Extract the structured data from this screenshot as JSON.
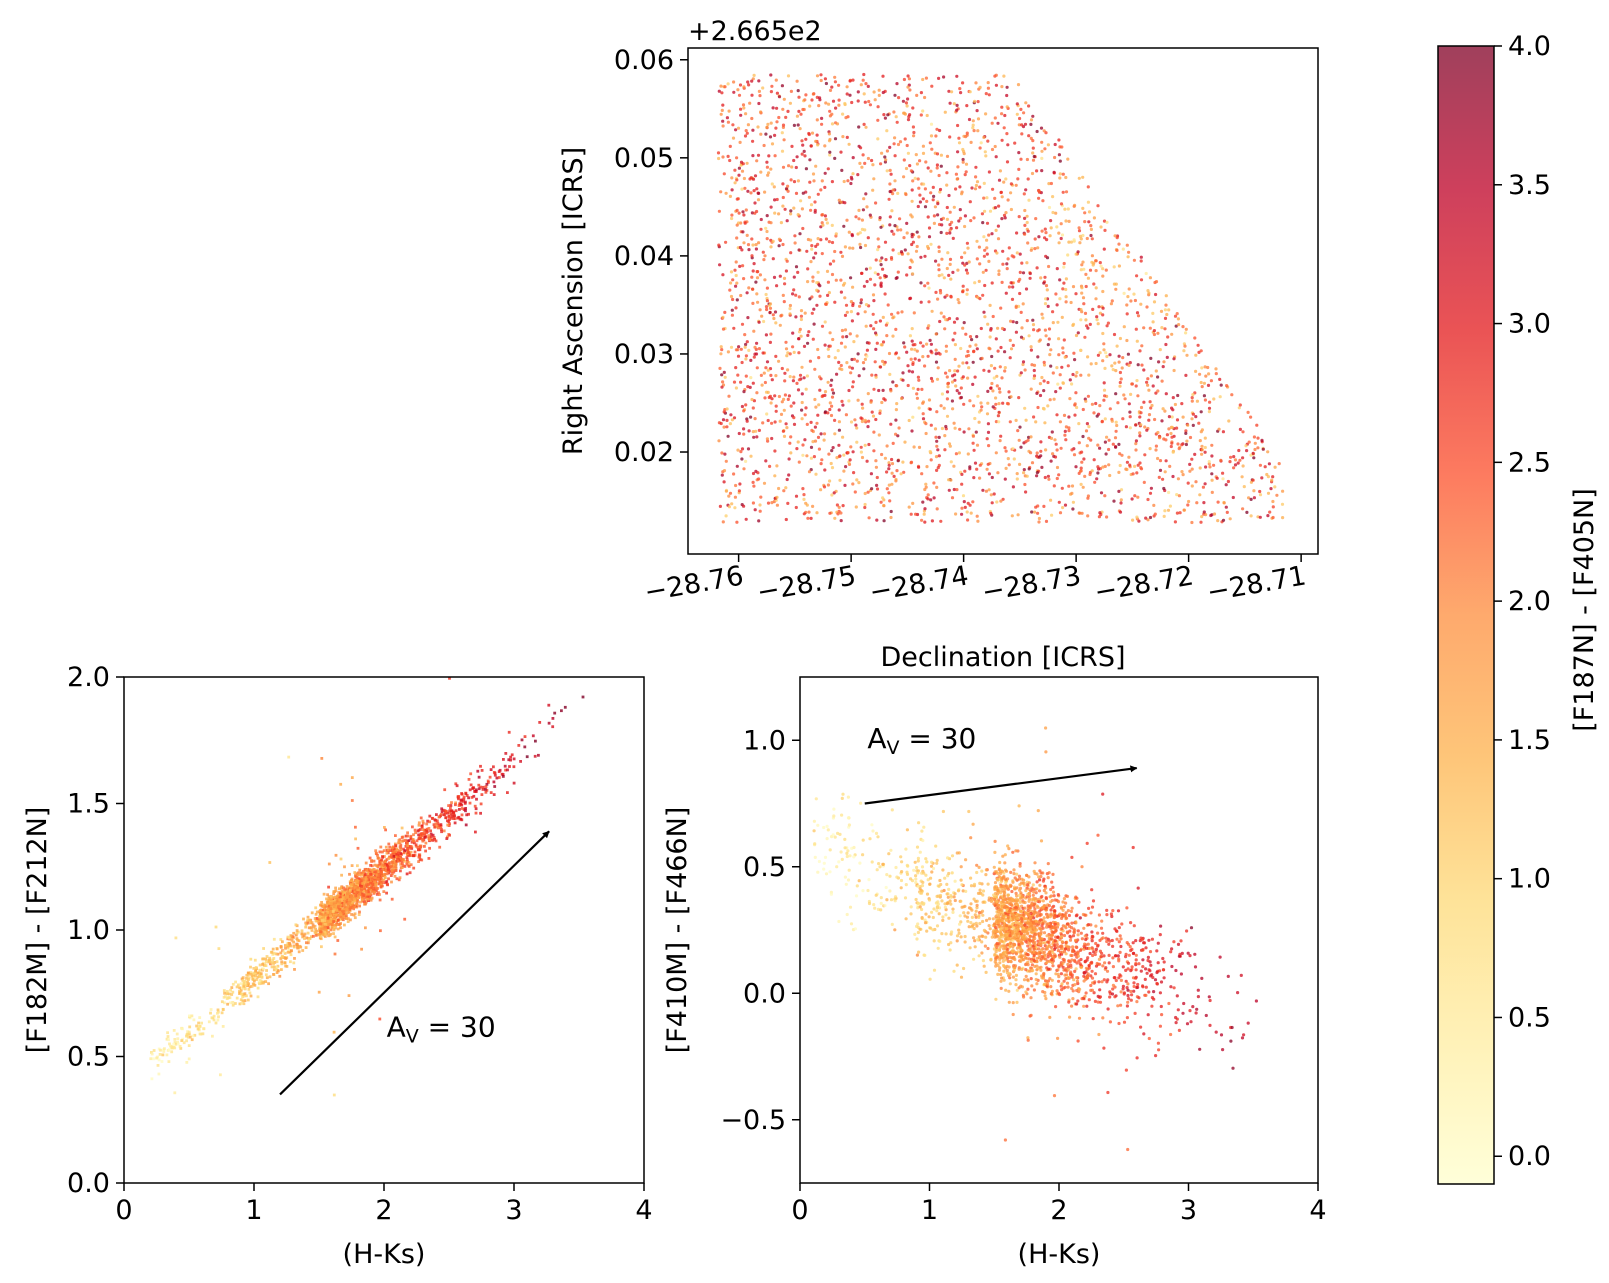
{
  "colorbar": {
    "label": "[F187N] - [F405N]",
    "vmin": -0.1,
    "vmax": 4.0,
    "ticks": [
      0.0,
      0.5,
      1.0,
      1.5,
      2.0,
      2.5,
      3.0,
      3.5,
      4.0
    ],
    "tick_labels": [
      "0.0",
      "0.5",
      "1.0",
      "1.5",
      "2.0",
      "2.5",
      "3.0",
      "3.5",
      "4.0"
    ],
    "colormap": "YlOrRd",
    "stops": [
      "#ffffcc",
      "#ffeda0",
      "#fed976",
      "#feb24c",
      "#fd8d3c",
      "#fc4e2a",
      "#e31a1c",
      "#bd0026",
      "#800026"
    ],
    "alpha": 0.75
  },
  "chart_data": [
    {
      "id": "sky",
      "type": "scatter",
      "title": "",
      "xlabel": "Declination [ICRS]",
      "ylabel": "Right Ascension [ICRS]",
      "offset_text": "+2.665e2",
      "xlim": [
        -28.7645,
        -28.7085
      ],
      "ylim": [
        0.0096,
        0.0612
      ],
      "xticks": [
        -28.76,
        -28.75,
        -28.74,
        -28.73,
        -28.72,
        -28.71
      ],
      "xtick_labels": [
        "−28.76",
        "−28.75",
        "−28.74",
        "−28.73",
        "−28.72",
        "−28.71"
      ],
      "yticks": [
        0.02,
        0.03,
        0.04,
        0.05,
        0.06
      ],
      "ytick_labels": [
        "0.02",
        "0.03",
        "0.04",
        "0.05",
        "0.06"
      ],
      "points_description": "approx. 3000 sources filling a trapezoidal field",
      "footprint": {
        "dec_min": -28.7618,
        "dec_max": -28.7115,
        "ra_min": 0.0128,
        "ra_max": 0.0585,
        "top_right_dec": -28.7355,
        "slant_end_dec": -28.7115,
        "slant_end_ra": 0.019
      },
      "color_range": [
        0.5,
        4.0
      ]
    },
    {
      "id": "cmd_left",
      "type": "scatter",
      "title": "",
      "xlabel": "(H-Ks)",
      "ylabel": "[F182M] - [F212N]",
      "xlim": [
        0,
        4
      ],
      "ylim": [
        0.0,
        2.0
      ],
      "xticks": [
        0,
        1,
        2,
        3,
        4
      ],
      "xtick_labels": [
        "0",
        "1",
        "2",
        "3",
        "4"
      ],
      "yticks": [
        0.0,
        0.5,
        1.0,
        1.5,
        2.0
      ],
      "ytick_labels": [
        "0.0",
        "0.5",
        "1.0",
        "1.5",
        "2.0"
      ],
      "trend": {
        "x_from": 0.2,
        "x_to": 3.6,
        "slope": 0.43,
        "intercept": 0.38,
        "scatter": 0.05
      },
      "arrow": {
        "x0": 1.2,
        "y0": 0.35,
        "x1": 3.27,
        "y1": 1.39
      },
      "annotation": {
        "text": "A",
        "sub": "V",
        "rest": " = 30",
        "x": 2.02,
        "y": 0.58
      }
    },
    {
      "id": "cmd_right",
      "type": "scatter",
      "title": "",
      "xlabel": "(H-Ks)",
      "ylabel": "[F410M] - [F466N]",
      "xlim": [
        0,
        4
      ],
      "ylim": [
        -0.75,
        1.25
      ],
      "xticks": [
        0,
        1,
        2,
        3,
        4
      ],
      "xtick_labels": [
        "0",
        "1",
        "2",
        "3",
        "4"
      ],
      "yticks": [
        -0.5,
        0.0,
        0.5,
        1.0
      ],
      "ytick_labels": [
        "−0.5",
        "0.0",
        "0.5",
        "1.0"
      ],
      "trend": {
        "x_from": 0.1,
        "x_to": 3.6,
        "slope": -0.2,
        "intercept": 0.6,
        "scatter": 0.11
      },
      "arrow": {
        "x0": 0.5,
        "y0": 0.75,
        "x1": 2.6,
        "y1": 0.89
      },
      "annotation": {
        "text": "A",
        "sub": "V",
        "rest": " = 30",
        "x": 0.52,
        "y": 0.97
      }
    }
  ]
}
